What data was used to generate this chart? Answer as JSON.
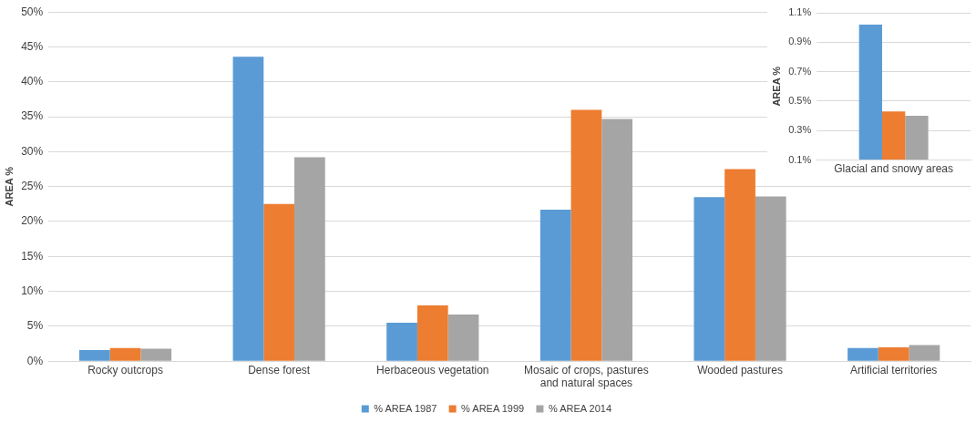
{
  "chart_data": [
    {
      "type": "bar",
      "ylabel": "AREA %",
      "categories": [
        "Rocky outcrops",
        "Dense forest",
        "Herbaceous vegetation",
        "Mosaic of crops, pastures and natural spaces",
        "Wooded pastures",
        "Artificial territories"
      ],
      "series": [
        {
          "name": "% AREA 1987",
          "color": "#5b9bd5",
          "values": [
            1.6,
            43.6,
            5.5,
            21.7,
            23.5,
            1.9
          ]
        },
        {
          "name": "% AREA 1999",
          "color": "#ed7d31",
          "values": [
            1.9,
            22.5,
            8.0,
            36.0,
            27.5,
            2.0
          ]
        },
        {
          "name": "% AREA 2014",
          "color": "#a5a5a5",
          "values": [
            1.8,
            29.2,
            6.7,
            34.7,
            23.6,
            2.3
          ]
        }
      ],
      "ylim": [
        0,
        50
      ],
      "yticks": [
        {
          "value": 0,
          "label": "0%"
        },
        {
          "value": 5,
          "label": "5%"
        },
        {
          "value": 10,
          "label": "10%"
        },
        {
          "value": 15,
          "label": "15%"
        },
        {
          "value": 20,
          "label": "20%"
        },
        {
          "value": 25,
          "label": "25%"
        },
        {
          "value": 30,
          "label": "30%"
        },
        {
          "value": 35,
          "label": "35%"
        },
        {
          "value": 40,
          "label": "40%"
        },
        {
          "value": 45,
          "label": "45%"
        },
        {
          "value": 50,
          "label": "50%"
        }
      ],
      "grid": "y",
      "legend": "bottom"
    },
    {
      "type": "bar",
      "ylabel": "AREA %",
      "categories": [
        "Glacial and snowy areas"
      ],
      "series": [
        {
          "color": "#5b9bd5",
          "values": [
            1.02
          ]
        },
        {
          "color": "#ed7d31",
          "values": [
            0.43
          ]
        },
        {
          "color": "#a5a5a5",
          "values": [
            0.4
          ]
        }
      ],
      "ylim": [
        0.1,
        1.1
      ],
      "yticks": [
        {
          "value": 0.1,
          "label": "0.1%"
        },
        {
          "value": 0.3,
          "label": "0.3%"
        },
        {
          "value": 0.5,
          "label": "0.5%"
        },
        {
          "value": 0.7,
          "label": "0.7%"
        },
        {
          "value": 0.9,
          "label": "0.9%"
        },
        {
          "value": 1.1,
          "label": "1.1%"
        }
      ],
      "grid": "y"
    }
  ]
}
